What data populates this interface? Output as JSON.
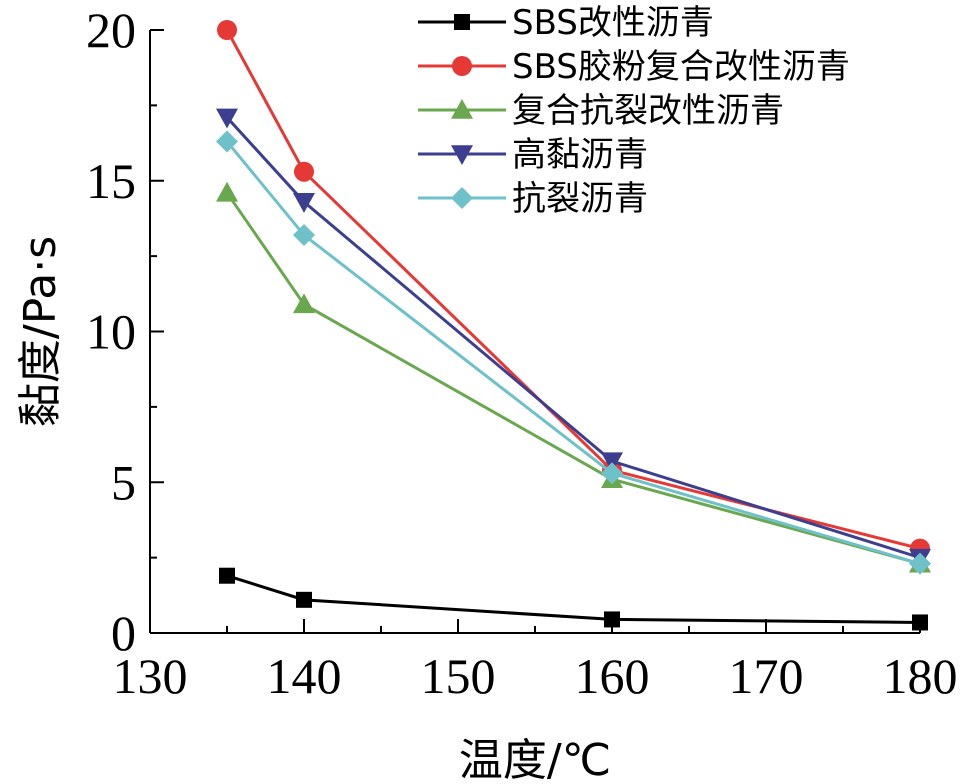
{
  "chart_data": {
    "type": "line",
    "xlabel": "温度/℃",
    "ylabel": "黏度/Pa·s",
    "xlim": [
      130,
      180
    ],
    "ylim": [
      0,
      20
    ],
    "x_ticks": [
      "130",
      "140",
      "150",
      "160",
      "170",
      "180"
    ],
    "y_ticks": [
      "0",
      "5",
      "10",
      "15",
      "20"
    ],
    "x": [
      135,
      140,
      160,
      180
    ],
    "grid": false,
    "legend_position": "top-right",
    "series": [
      {
        "name": "SBS改性沥青",
        "marker": "square",
        "color": "#000000",
        "values": [
          1.9,
          1.1,
          0.45,
          0.35
        ]
      },
      {
        "name": "SBS胶粉复合改性沥青",
        "marker": "circle",
        "color": "#e53935",
        "values": [
          20.0,
          15.3,
          5.4,
          2.8
        ]
      },
      {
        "name": "复合抗裂改性沥青",
        "marker": "triangle-up",
        "color": "#6aa84f",
        "values": [
          14.6,
          10.9,
          5.1,
          2.3
        ]
      },
      {
        "name": "高黏沥青",
        "marker": "triangle-down",
        "color": "#3c3f8f",
        "values": [
          17.1,
          14.3,
          5.7,
          2.5
        ]
      },
      {
        "name": "抗裂沥青",
        "marker": "diamond",
        "color": "#6ec1c9",
        "values": [
          16.3,
          13.2,
          5.3,
          2.3
        ]
      }
    ]
  }
}
